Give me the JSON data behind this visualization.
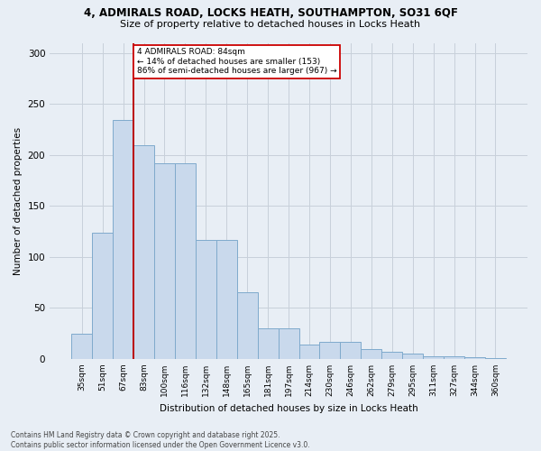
{
  "title_line1": "4, ADMIRALS ROAD, LOCKS HEATH, SOUTHAMPTON, SO31 6QF",
  "title_line2": "Size of property relative to detached houses in Locks Heath",
  "xlabel": "Distribution of detached houses by size in Locks Heath",
  "ylabel": "Number of detached properties",
  "categories": [
    "35sqm",
    "51sqm",
    "67sqm",
    "83sqm",
    "100sqm",
    "116sqm",
    "132sqm",
    "148sqm",
    "165sqm",
    "181sqm",
    "197sqm",
    "214sqm",
    "230sqm",
    "246sqm",
    "262sqm",
    "279sqm",
    "295sqm",
    "311sqm",
    "327sqm",
    "344sqm",
    "360sqm"
  ],
  "bar_values": [
    25,
    124,
    234,
    210,
    192,
    192,
    117,
    117,
    65,
    30,
    30,
    14,
    17,
    17,
    10,
    7,
    5,
    3,
    3,
    2,
    1
  ],
  "bar_color": "#c9d9ec",
  "bar_edgecolor": "#7faacc",
  "grid_color": "#c8d0da",
  "background_color": "#e8eef5",
  "annotation_text": "4 ADMIRALS ROAD: 84sqm\n← 14% of detached houses are smaller (153)\n86% of semi-detached houses are larger (967) →",
  "vline_position": 2.5,
  "vline_color": "#bb0000",
  "box_facecolor": "#ffffff",
  "box_edgecolor": "#cc0000",
  "footnote": "Contains HM Land Registry data © Crown copyright and database right 2025.\nContains public sector information licensed under the Open Government Licence v3.0.",
  "ylim": [
    0,
    310
  ],
  "yticks": [
    0,
    50,
    100,
    150,
    200,
    250,
    300
  ]
}
